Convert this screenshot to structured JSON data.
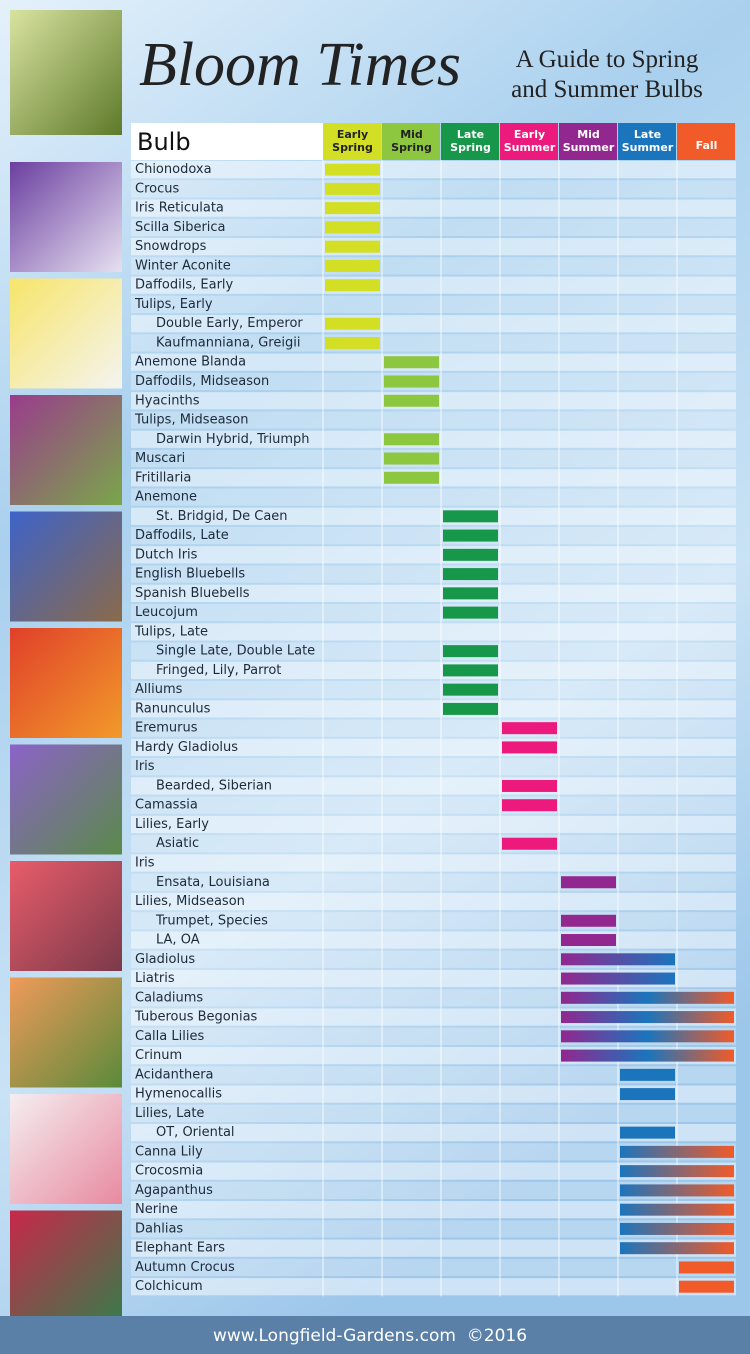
{
  "header": {
    "title": "Bloom Times",
    "subtitle": [
      "A Guide to Spring",
      "and Summer Bulbs"
    ]
  },
  "table": {
    "label_header": "Bulb",
    "columns": [
      {
        "name": "Early Spring",
        "color": "#d3df24",
        "text_color": "#222222"
      },
      {
        "name": "Mid Spring",
        "color": "#8dc63f",
        "text_color": "#222222"
      },
      {
        "name": "Late Spring",
        "color": "#16974a",
        "text_color": "#ffffff"
      },
      {
        "name": "Early Summer",
        "color": "#ec1a7d",
        "text_color": "#ffffff"
      },
      {
        "name": "Mid Summer",
        "color": "#92278f",
        "text_color": "#ffffff"
      },
      {
        "name": "Late Summer",
        "color": "#1b75bc",
        "text_color": "#ffffff"
      },
      {
        "name": "Fall",
        "color": "#f15a29",
        "text_color": "#ffffff"
      }
    ],
    "rows": [
      {
        "label": "Chionodoxa",
        "start": "Early Spring",
        "end": "Early Spring"
      },
      {
        "label": "Crocus",
        "start": "Early Spring",
        "end": "Early Spring"
      },
      {
        "label": "Iris Reticulata",
        "start": "Early Spring",
        "end": "Early Spring"
      },
      {
        "label": "Scilla Siberica",
        "start": "Early Spring",
        "end": "Early Spring"
      },
      {
        "label": "Snowdrops",
        "start": "Early Spring",
        "end": "Early Spring"
      },
      {
        "label": "Winter Aconite",
        "start": "Early Spring",
        "end": "Early Spring"
      },
      {
        "label": "Daffodils, Early",
        "start": "Early Spring",
        "end": "Early Spring"
      },
      {
        "label": "Tulips, Early"
      },
      {
        "label": "Double Early, Emperor",
        "indent": true,
        "start": "Early Spring",
        "end": "Early Spring"
      },
      {
        "label": "Kaufmanniana, Greigii",
        "indent": true,
        "start": "Early Spring",
        "end": "Early Spring"
      },
      {
        "label": "Anemone Blanda",
        "start": "Mid Spring",
        "end": "Mid Spring"
      },
      {
        "label": "Daffodils, Midseason",
        "start": "Mid Spring",
        "end": "Mid Spring"
      },
      {
        "label": "Hyacinths",
        "start": "Mid Spring",
        "end": "Mid Spring"
      },
      {
        "label": "Tulips, Midseason"
      },
      {
        "label": "Darwin Hybrid, Triumph",
        "indent": true,
        "start": "Mid Spring",
        "end": "Mid Spring"
      },
      {
        "label": "Muscari",
        "start": "Mid Spring",
        "end": "Mid Spring"
      },
      {
        "label": "Fritillaria",
        "start": "Mid Spring",
        "end": "Mid Spring"
      },
      {
        "label": "Anemone"
      },
      {
        "label": "St. Bridgid, De Caen",
        "indent": true,
        "start": "Late Spring",
        "end": "Late Spring"
      },
      {
        "label": "Daffodils, Late",
        "start": "Late Spring",
        "end": "Late Spring"
      },
      {
        "label": "Dutch Iris",
        "start": "Late Spring",
        "end": "Late Spring"
      },
      {
        "label": "English Bluebells",
        "start": "Late Spring",
        "end": "Late Spring"
      },
      {
        "label": "Spanish Bluebells",
        "start": "Late Spring",
        "end": "Late Spring"
      },
      {
        "label": "Leucojum",
        "start": "Late Spring",
        "end": "Late Spring"
      },
      {
        "label": "Tulips, Late"
      },
      {
        "label": "Single Late, Double Late",
        "indent": true,
        "start": "Late Spring",
        "end": "Late Spring"
      },
      {
        "label": "Fringed, Lily, Parrot",
        "indent": true,
        "start": "Late Spring",
        "end": "Late Spring"
      },
      {
        "label": "Alliums",
        "start": "Late Spring",
        "end": "Late Spring"
      },
      {
        "label": "Ranunculus",
        "start": "Late Spring",
        "end": "Late Spring"
      },
      {
        "label": "Eremurus",
        "start": "Early Summer",
        "end": "Early Summer"
      },
      {
        "label": "Hardy Gladiolus",
        "start": "Early Summer",
        "end": "Early Summer"
      },
      {
        "label": "Iris"
      },
      {
        "label": "Bearded, Siberian",
        "indent": true,
        "start": "Early Summer",
        "end": "Early Summer"
      },
      {
        "label": "Camassia",
        "start": "Early Summer",
        "end": "Early Summer"
      },
      {
        "label": "Lilies, Early"
      },
      {
        "label": "Asiatic",
        "indent": true,
        "start": "Early Summer",
        "end": "Early Summer"
      },
      {
        "label": "Iris"
      },
      {
        "label": "Ensata, Louisiana",
        "indent": true,
        "start": "Mid Summer",
        "end": "Mid Summer"
      },
      {
        "label": "Lilies, Midseason"
      },
      {
        "label": "Trumpet, Species",
        "indent": true,
        "start": "Mid Summer",
        "end": "Mid Summer"
      },
      {
        "label": "LA, OA",
        "indent": true,
        "start": "Mid Summer",
        "end": "Mid Summer"
      },
      {
        "label": "Gladiolus",
        "start": "Mid Summer",
        "end": "Late Summer"
      },
      {
        "label": "Liatris",
        "start": "Mid Summer",
        "end": "Late Summer"
      },
      {
        "label": "Caladiums",
        "start": "Mid Summer",
        "end": "Fall"
      },
      {
        "label": "Tuberous Begonias",
        "start": "Mid Summer",
        "end": "Fall"
      },
      {
        "label": "Calla Lilies",
        "start": "Mid Summer",
        "end": "Fall"
      },
      {
        "label": "Crinum",
        "start": "Mid Summer",
        "end": "Fall"
      },
      {
        "label": "Acidanthera",
        "start": "Late Summer",
        "end": "Late Summer"
      },
      {
        "label": "Hymenocallis",
        "start": "Late Summer",
        "end": "Late Summer"
      },
      {
        "label": "Lilies, Late"
      },
      {
        "label": "OT, Oriental",
        "indent": true,
        "start": "Late Summer",
        "end": "Late Summer"
      },
      {
        "label": "Canna Lily",
        "start": "Late Summer",
        "end": "Fall"
      },
      {
        "label": "Crocosmia",
        "start": "Late Summer",
        "end": "Fall"
      },
      {
        "label": "Agapanthus",
        "start": "Late Summer",
        "end": "Fall"
      },
      {
        "label": "Nerine",
        "start": "Late Summer",
        "end": "Fall"
      },
      {
        "label": "Dahlias",
        "start": "Late Summer",
        "end": "Fall"
      },
      {
        "label": "Elephant Ears",
        "start": "Late Summer",
        "end": "Fall"
      },
      {
        "label": "Autumn Crocus",
        "start": "Fall",
        "end": "Fall"
      },
      {
        "label": "Colchicum",
        "start": "Fall",
        "end": "Fall"
      }
    ]
  },
  "footer": {
    "text": "www.Longfield-Gardens.com  ©2016"
  }
}
